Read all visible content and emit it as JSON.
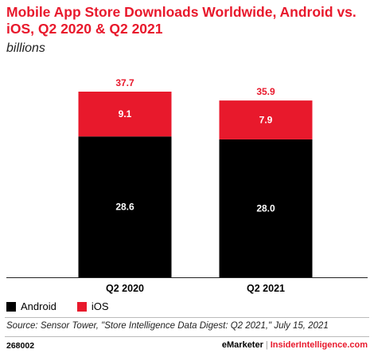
{
  "title": "Mobile App Store Downloads Worldwide, Android vs. iOS, Q2 2020 & Q2 2021",
  "subtitle": "billions",
  "legend": [
    {
      "name": "Android",
      "color": "#000000"
    },
    {
      "name": "iOS",
      "color": "#e8192c"
    }
  ],
  "source": "Source: Sensor Tower, \"Store Intelligence Data Digest: Q2 2021,\" July 15, 2021",
  "footer": {
    "id": "268002",
    "brand": "eMarketer",
    "separator": "|",
    "site": "InsiderIntelligence.com"
  },
  "colors": {
    "accent": "#e8192c",
    "android": "#000000",
    "ios": "#e8192c"
  },
  "chart_data": {
    "type": "bar",
    "stacked": true,
    "categories": [
      "Q2 2020",
      "Q2 2021"
    ],
    "series": [
      {
        "name": "Android",
        "values": [
          28.6,
          28.0
        ]
      },
      {
        "name": "iOS",
        "values": [
          9.1,
          7.9
        ]
      }
    ],
    "totals": [
      37.7,
      35.9
    ],
    "ylim": [
      0,
      37.7
    ],
    "grid": false,
    "legend_position": "bottom-left"
  }
}
